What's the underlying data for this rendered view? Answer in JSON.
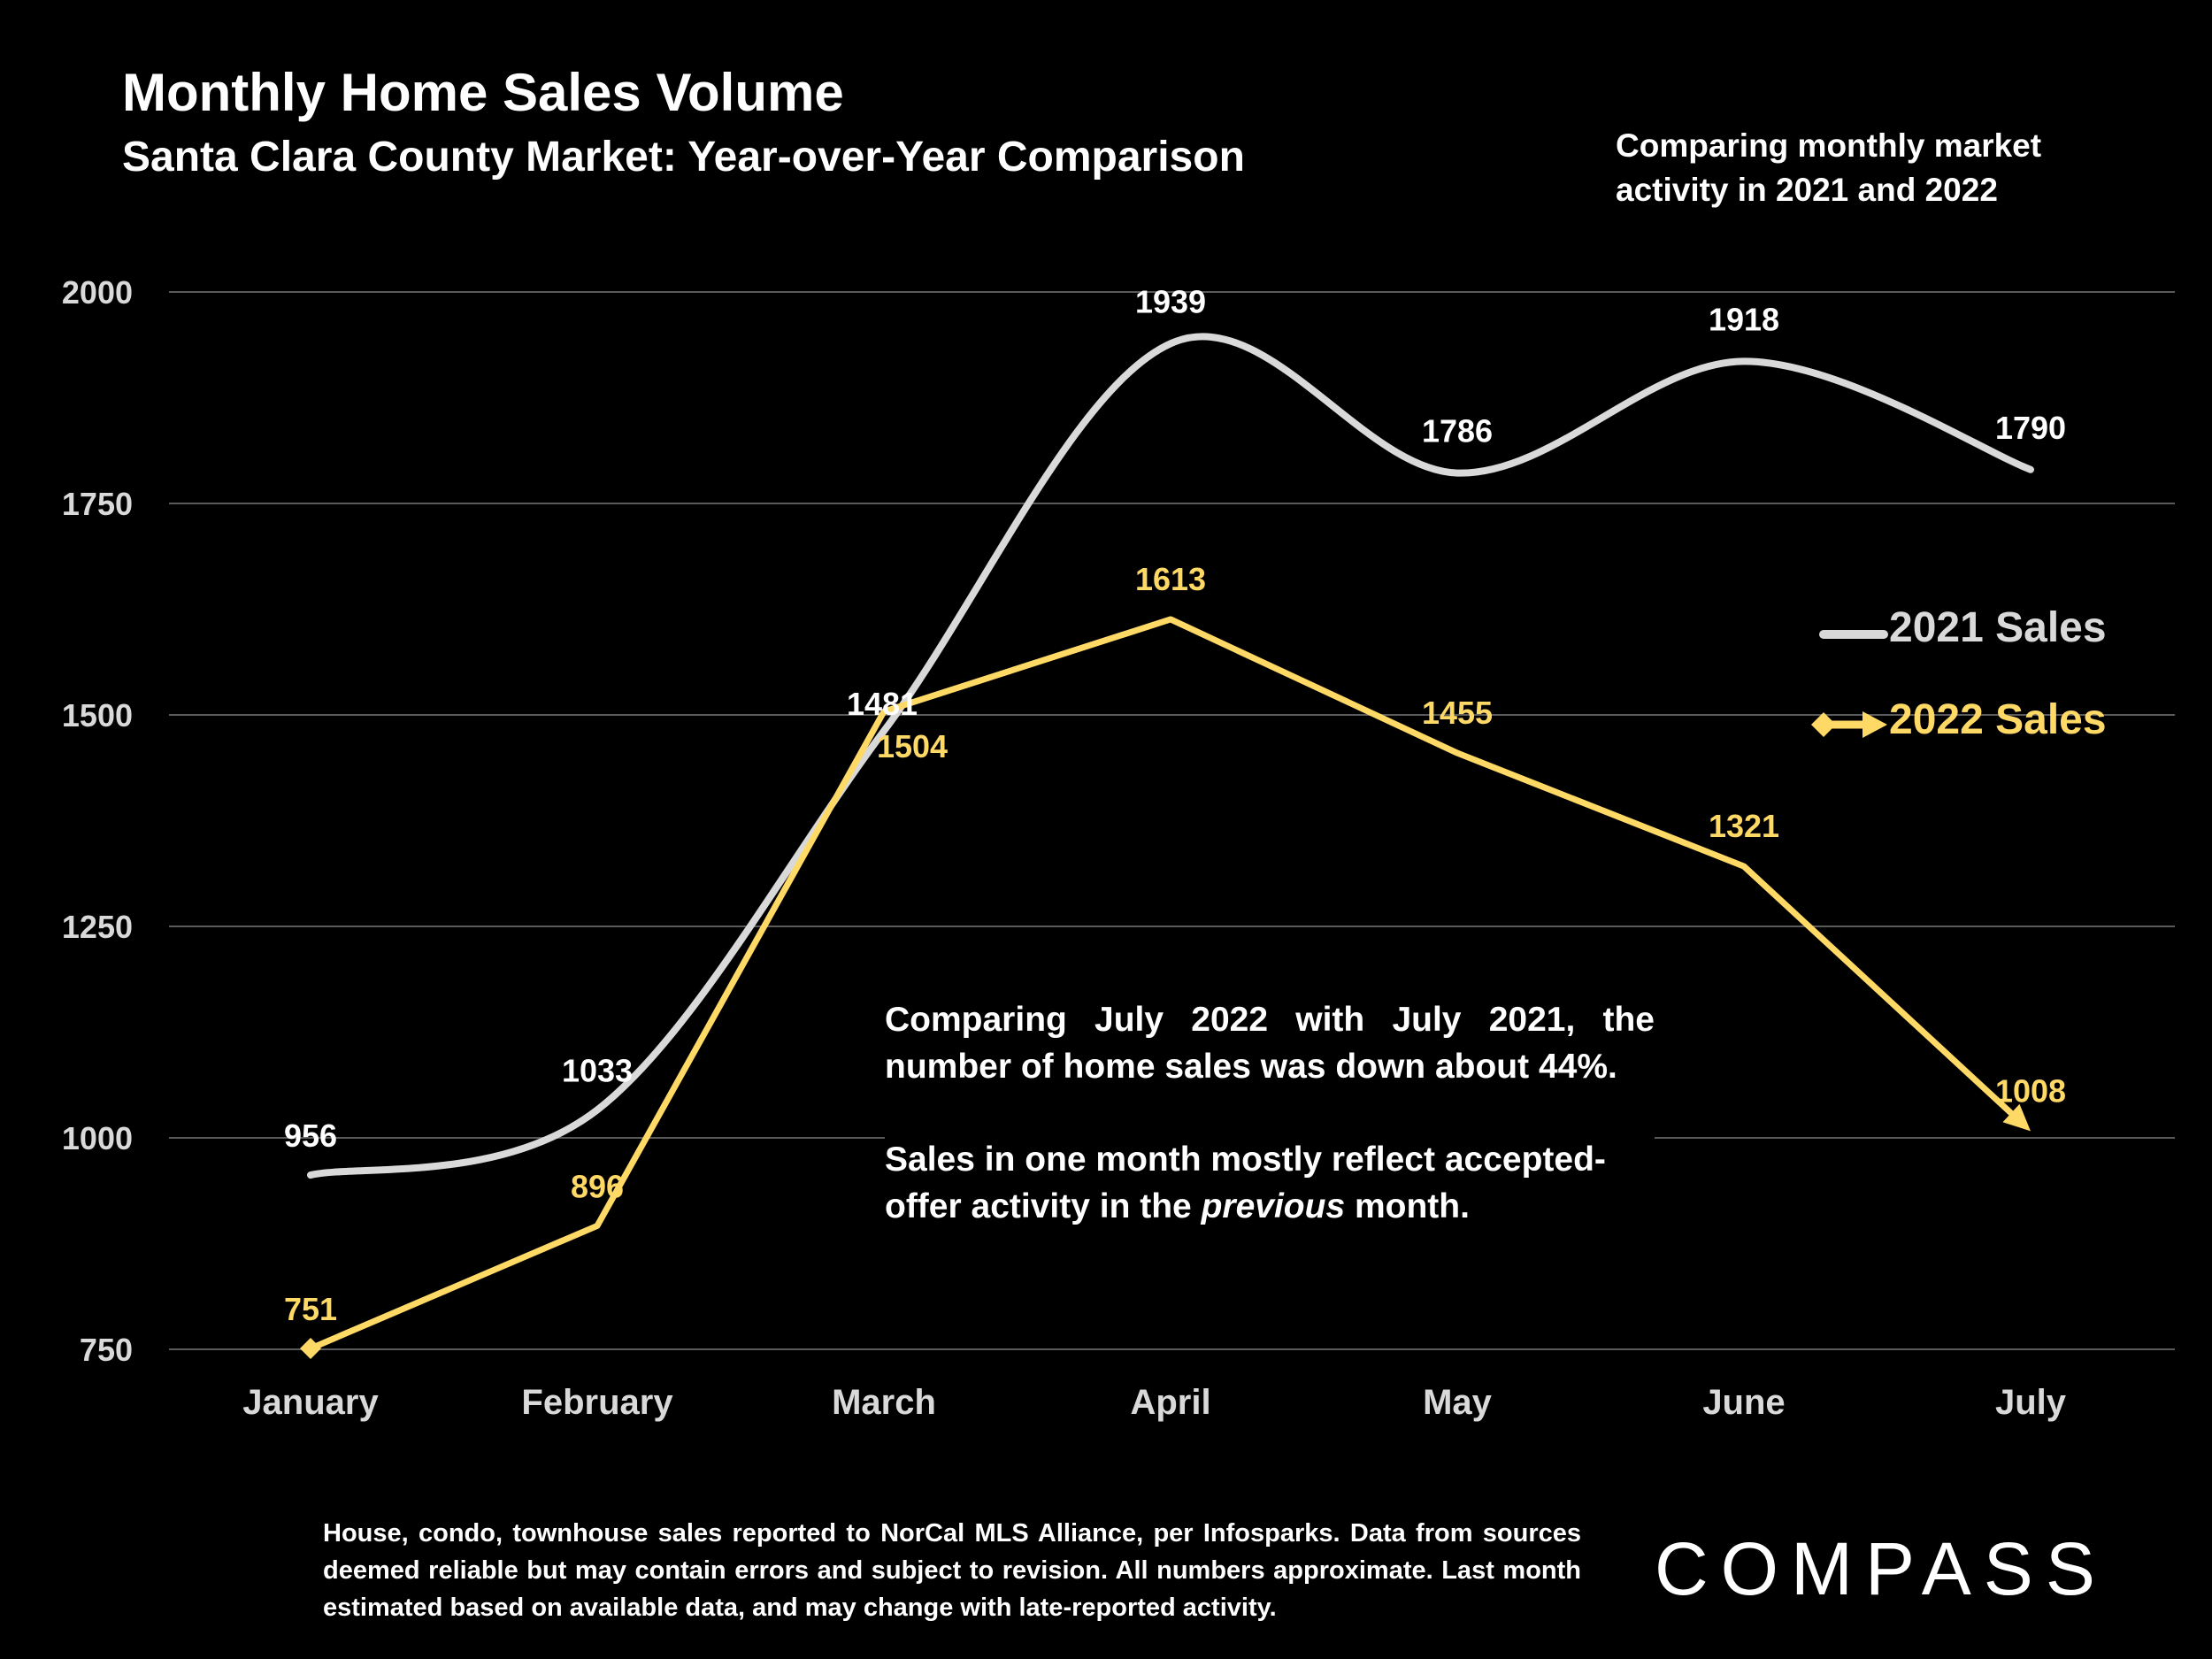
{
  "chart_data": {
    "type": "line",
    "title": "Monthly Home Sales Volume",
    "subtitle": "Santa Clara County Market: Year-over-Year Comparison",
    "xlabel": "",
    "ylabel": "",
    "categories": [
      "January",
      "February",
      "March",
      "April",
      "May",
      "June",
      "July"
    ],
    "y_ticks": [
      "2000",
      "1750",
      "1500",
      "1250",
      "1000",
      "750"
    ],
    "ylim": [
      750,
      2000
    ],
    "grid": true,
    "legend_position": "right",
    "series": [
      {
        "name": "2021 Sales",
        "color": "#d9d9d9",
        "smooth": true,
        "values": [
          956,
          1033,
          1481,
          1939,
          1786,
          1918,
          1790
        ]
      },
      {
        "name": "2022 Sales",
        "color": "#ffd966",
        "smooth": false,
        "values": [
          751,
          896,
          1504,
          1613,
          1455,
          1321,
          1008
        ]
      }
    ]
  },
  "note": {
    "line1": "Comparing monthly market",
    "line2": "activity in 2021 and 2022"
  },
  "annotation": {
    "p1": "Comparing July 2022 with July 2021, the number of home sales was down about 44%.",
    "p2_a": "Sales in one month mostly reflect accepted-offer activity in the ",
    "p2_em": "previous",
    "p2_b": " month."
  },
  "footnote": "House, condo, townhouse sales reported to NorCal MLS Alliance, per Infosparks. Data from sources deemed reliable but may contain errors and subject to revision. All numbers approximate. Last month estimated based on available data, and may change with late-reported activity.",
  "logo": "COMPASS"
}
